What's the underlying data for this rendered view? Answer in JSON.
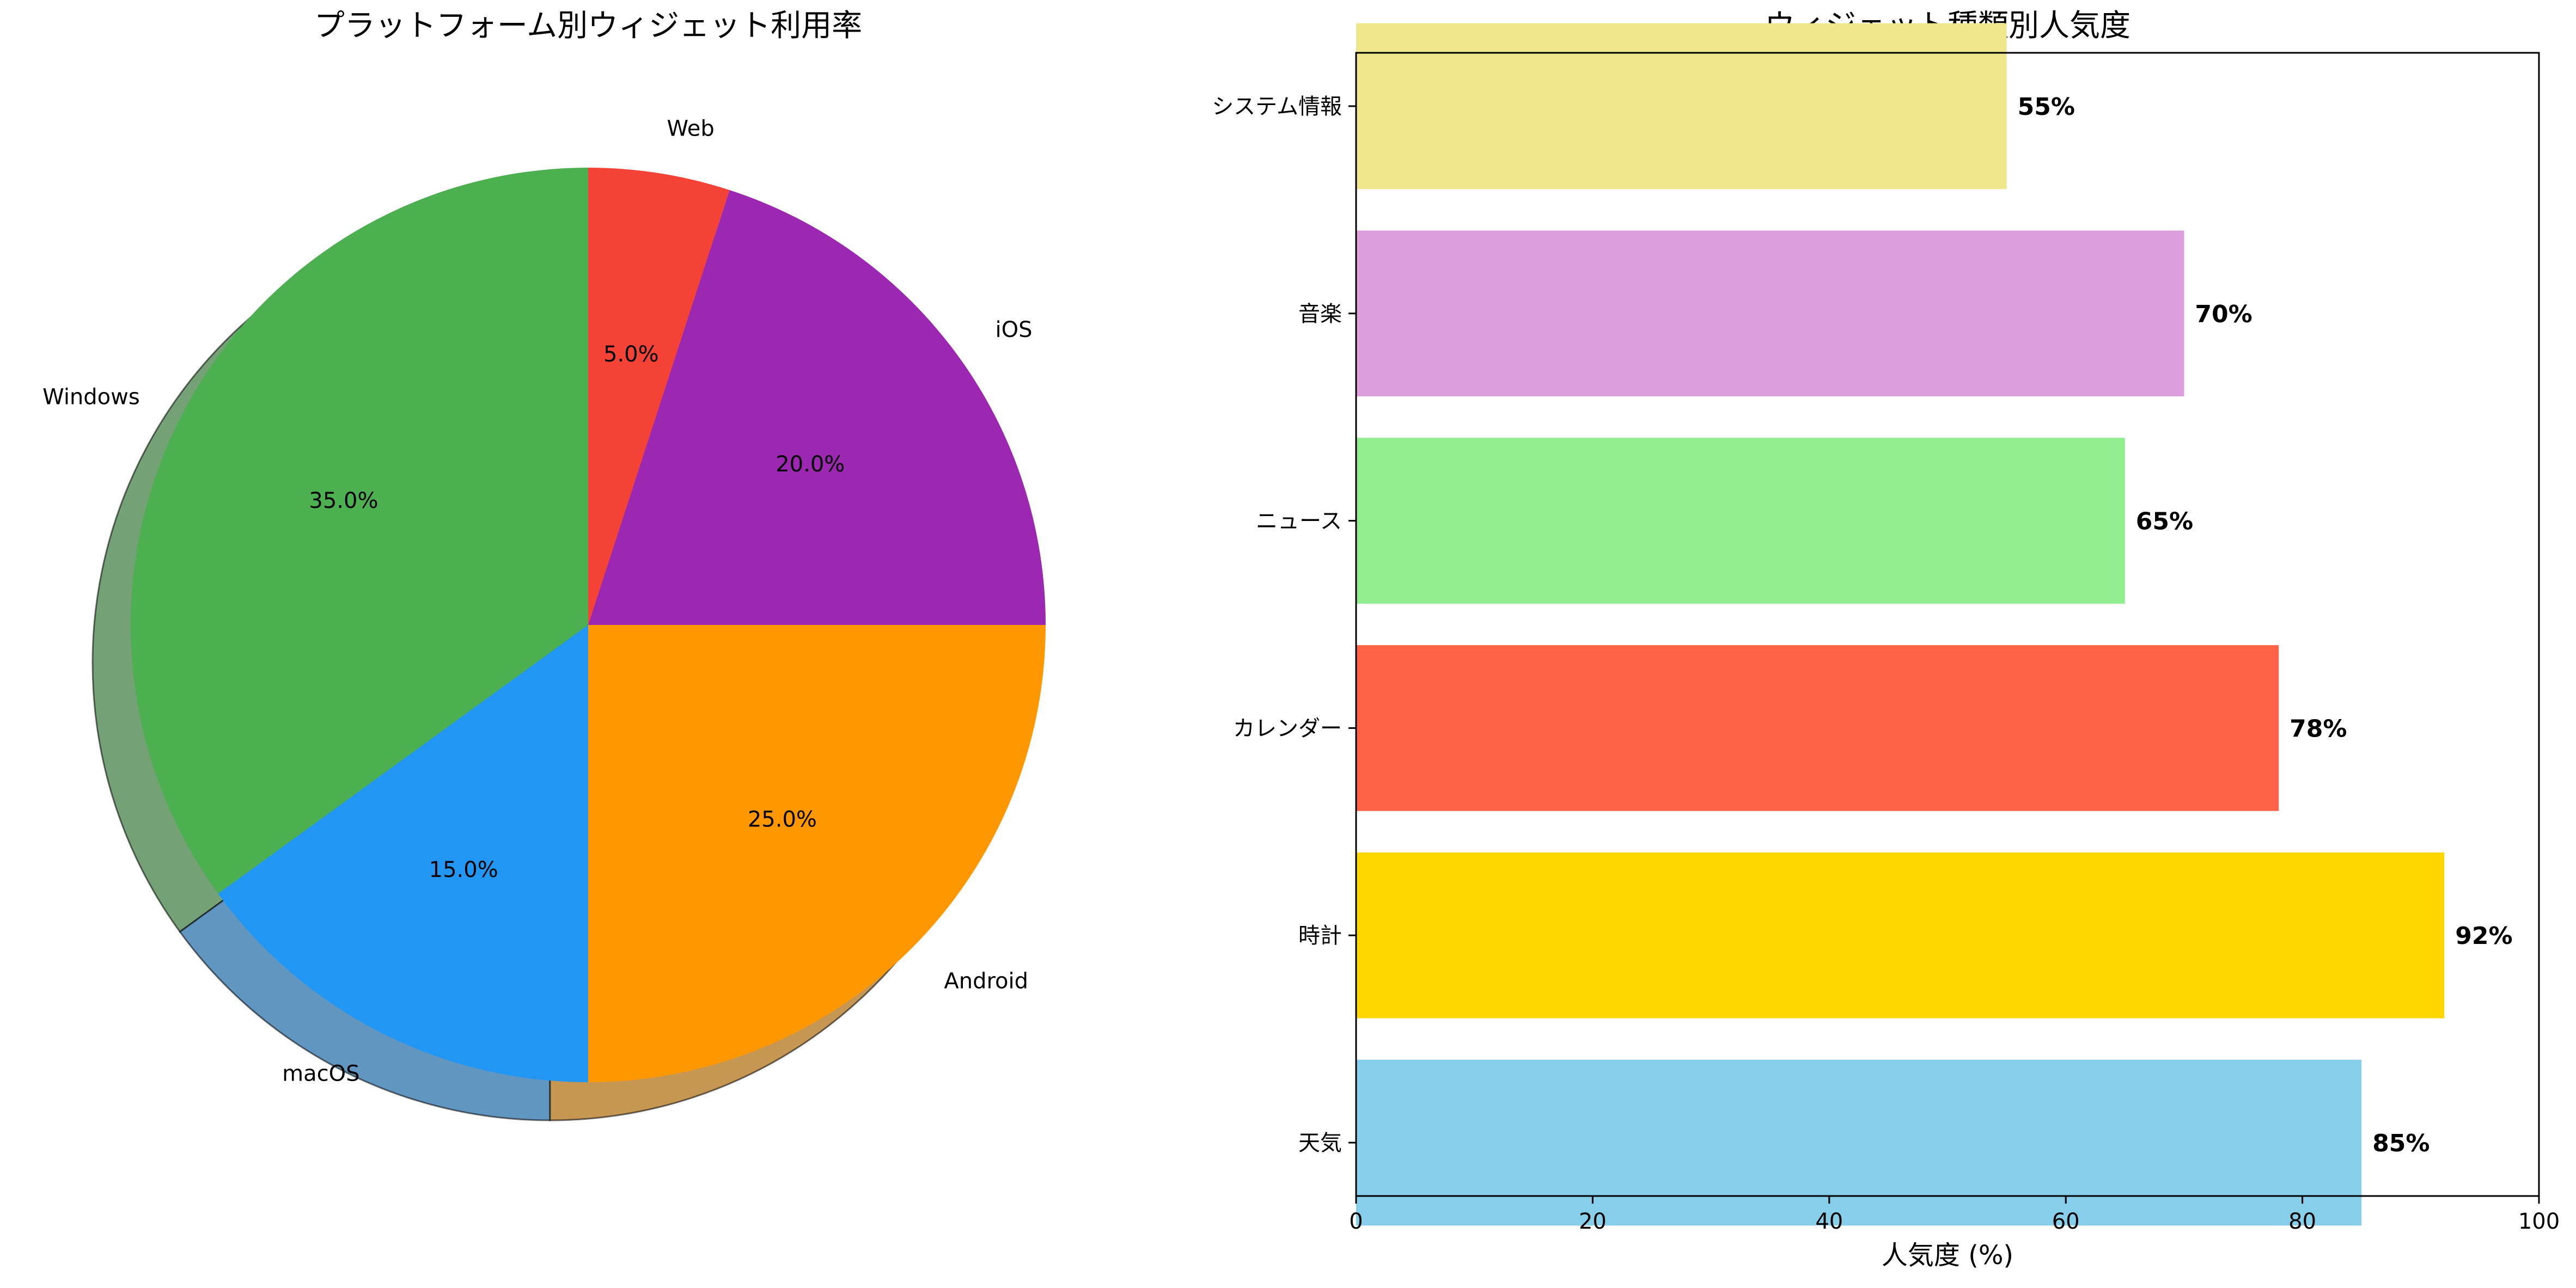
{
  "chart_data": [
    {
      "type": "pie",
      "title": "プラットフォーム別ウィジェット利用率",
      "start_angle_deg": 90,
      "direction": "counterclockwise",
      "shadow": true,
      "slices": [
        {
          "label": "Windows",
          "value": 35.0,
          "pct_label": "35.0%",
          "color": "#4CAF50"
        },
        {
          "label": "macOS",
          "value": 15.0,
          "pct_label": "15.0%",
          "color": "#2196F3"
        },
        {
          "label": "Android",
          "value": 25.0,
          "pct_label": "25.0%",
          "color": "#FF9800"
        },
        {
          "label": "iOS",
          "value": 20.0,
          "pct_label": "20.0%",
          "color": "#9C27B0"
        },
        {
          "label": "Web",
          "value": 5.0,
          "pct_label": "5.0%",
          "color": "#F44336"
        }
      ]
    },
    {
      "type": "bar",
      "orientation": "horizontal",
      "title": "ウィジェット種類別人気度",
      "xlabel": "人気度 (%)",
      "ylabel": "",
      "xlim": [
        0,
        100
      ],
      "xticks": [
        0,
        20,
        40,
        60,
        80,
        100
      ],
      "grid": false,
      "categories": [
        "天気",
        "時計",
        "カレンダー",
        "ニュース",
        "音楽",
        "システム情報"
      ],
      "values": [
        85,
        92,
        78,
        65,
        70,
        55
      ],
      "value_labels": [
        "85%",
        "92%",
        "78%",
        "65%",
        "70%",
        "55%"
      ],
      "colors": [
        "#87CEEB",
        "#FFD700",
        "#FF6347",
        "#90EE90",
        "#DDA0DD",
        "#F0E68C"
      ]
    }
  ]
}
